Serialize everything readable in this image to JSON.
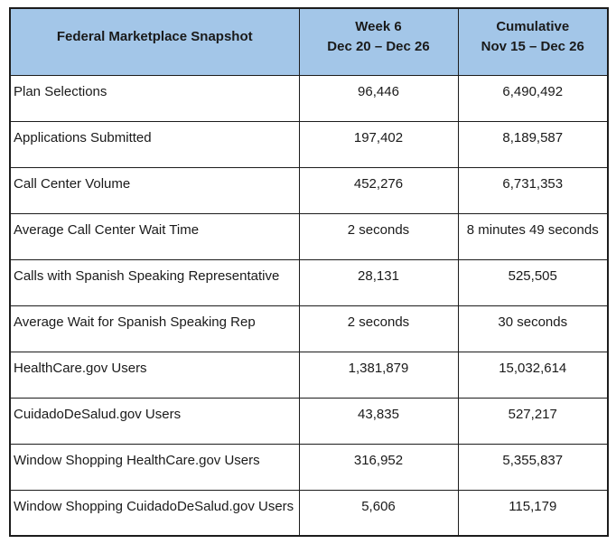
{
  "colors": {
    "header_bg": "#A3C6E8",
    "border": "#1C1C1C",
    "text": "#1A1A1A"
  },
  "table": {
    "header": {
      "label": "Federal Marketplace Snapshot",
      "week_line1": "Week 6",
      "week_line2": "Dec 20 – Dec 26",
      "cumulative_line1": "Cumulative",
      "cumulative_line2": "Nov 15 – Dec 26"
    },
    "rows": [
      {
        "label": "Plan Selections",
        "week": "96,446",
        "cumulative": "6,490,492"
      },
      {
        "label": "Applications Submitted",
        "week": "197,402",
        "cumulative": "8,189,587"
      },
      {
        "label": "Call Center Volume",
        "week": "452,276",
        "cumulative": "6,731,353"
      },
      {
        "label": "Average Call Center Wait Time",
        "week": "2 seconds",
        "cumulative": "8 minutes 49 seconds"
      },
      {
        "label": "Calls with Spanish Speaking Representative",
        "week": "28,131",
        "cumulative": "525,505"
      },
      {
        "label": "Average Wait for Spanish Speaking Rep",
        "week": "2 seconds",
        "cumulative": "30 seconds"
      },
      {
        "label": "HealthCare.gov Users",
        "week": "1,381,879",
        "cumulative": "15,032,614"
      },
      {
        "label": "CuidadoDeSalud.gov Users",
        "week": "43,835",
        "cumulative": "527,217"
      },
      {
        "label": "Window Shopping HealthCare.gov Users",
        "week": "316,952",
        "cumulative": "5,355,837"
      },
      {
        "label": "Window Shopping CuidadoDeSalud.gov Users",
        "week": "5,606",
        "cumulative": "115,179"
      }
    ]
  },
  "chart_data": {
    "type": "table",
    "title": "Federal Marketplace Snapshot",
    "columns": [
      "Federal Marketplace Snapshot",
      "Week 6 (Dec 20 – Dec 26)",
      "Cumulative (Nov 15 – Dec 26)"
    ],
    "rows": [
      [
        "Plan Selections",
        "96,446",
        "6,490,492"
      ],
      [
        "Applications Submitted",
        "197,402",
        "8,189,587"
      ],
      [
        "Call Center Volume",
        "452,276",
        "6,731,353"
      ],
      [
        "Average Call Center Wait Time",
        "2 seconds",
        "8 minutes 49 seconds"
      ],
      [
        "Calls with Spanish Speaking Representative",
        "28,131",
        "525,505"
      ],
      [
        "Average Wait for Spanish Speaking Rep",
        "2 seconds",
        "30 seconds"
      ],
      [
        "HealthCare.gov Users",
        "1,381,879",
        "15,032,614"
      ],
      [
        "CuidadoDeSalud.gov Users",
        "43,835",
        "527,217"
      ],
      [
        "Window Shopping HealthCare.gov Users",
        "316,952",
        "5,355,837"
      ],
      [
        "Window Shopping CuidadoDeSalud.gov Users",
        "5,606",
        "115,179"
      ]
    ]
  }
}
